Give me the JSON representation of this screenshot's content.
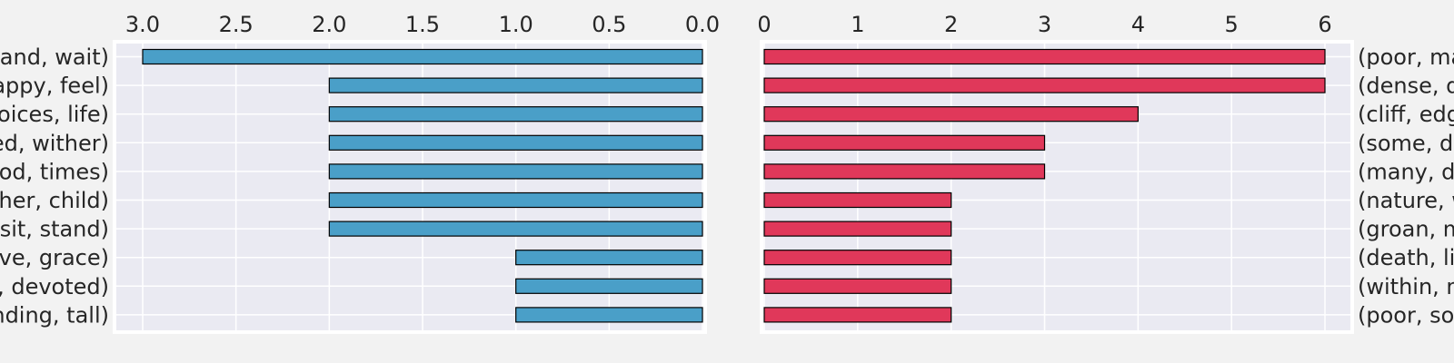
{
  "chart_data": [
    {
      "type": "bar",
      "orientation": "horizontal",
      "x_direction": "reversed",
      "label_side": "left",
      "categories": [
        "(stand, wait)",
        "(happy, feel)",
        "(choices, life)",
        "(faded, wither)",
        "(good, times)",
        "(mother, child)",
        "(sit, stand)",
        "(love, grace)",
        "(loyal, devoted)",
        "(standing, tall)"
      ],
      "values": [
        3,
        2,
        2,
        2,
        2,
        2,
        2,
        1,
        1,
        1
      ],
      "xlim": [
        3.0,
        0.0
      ],
      "xticks": [
        "3.0",
        "2.5",
        "2.0",
        "1.5",
        "1.0",
        "0.5",
        "0.0"
      ],
      "color": "#4a9fc8",
      "grid": true
    },
    {
      "type": "bar",
      "orientation": "horizontal",
      "x_direction": "normal",
      "label_side": "right",
      "categories": [
        "(poor, man)",
        "(dense, dark)",
        "(cliff, edge)",
        "(some, day)",
        "(many, days)",
        "(nature, wild)",
        "(groan, moan)",
        "(death, life)",
        "(within, me)",
        "(poor, soul)"
      ],
      "values": [
        6,
        6,
        4,
        3,
        3,
        2,
        2,
        2,
        2,
        2
      ],
      "xlim": [
        0,
        6
      ],
      "xticks": [
        "0",
        "1",
        "2",
        "3",
        "4",
        "5",
        "6"
      ],
      "color": "#e0385a",
      "grid": true
    }
  ]
}
